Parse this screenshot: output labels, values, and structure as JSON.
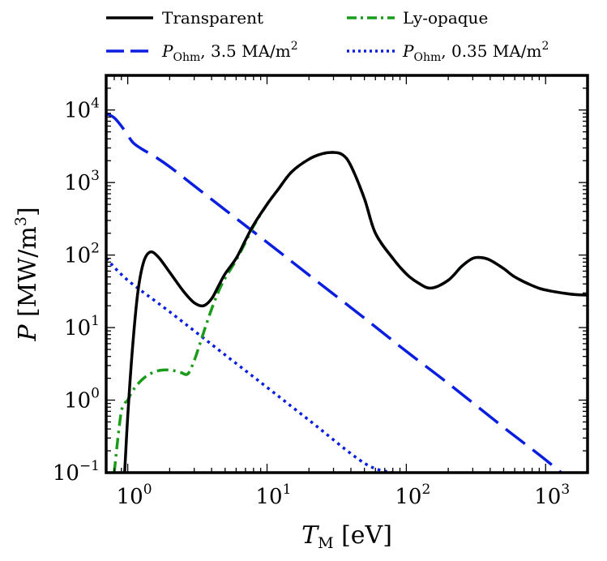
{
  "chart_data": {
    "type": "line",
    "xscale": "log",
    "yscale": "log",
    "xlim": [
      0.7,
      2000
    ],
    "ylim": [
      0.1,
      30000
    ],
    "xlabel": "T_M [eV]",
    "ylabel": "P [MW/m^3]",
    "x_ticks": [
      {
        "base": "10",
        "exp": "0",
        "value": 1
      },
      {
        "base": "10",
        "exp": "1",
        "value": 10
      },
      {
        "base": "10",
        "exp": "2",
        "value": 100
      },
      {
        "base": "10",
        "exp": "3",
        "value": 1000
      }
    ],
    "y_ticks": [
      {
        "base": "10",
        "exp": "−1",
        "value": 0.1
      },
      {
        "base": "10",
        "exp": "0",
        "value": 1
      },
      {
        "base": "10",
        "exp": "1",
        "value": 10
      },
      {
        "base": "10",
        "exp": "2",
        "value": 100
      },
      {
        "base": "10",
        "exp": "3",
        "value": 1000
      },
      {
        "base": "10",
        "exp": "4",
        "value": 10000
      }
    ],
    "grid": false,
    "legend_position": "above",
    "series": [
      {
        "name": "Transparent",
        "color": "#000000",
        "style": "solid",
        "x": [
          0.95,
          1.0,
          1.08,
          1.18,
          1.3,
          1.45,
          1.65,
          2.0,
          2.5,
          3.0,
          3.5,
          4.0,
          4.5,
          5.0,
          6.0,
          7.0,
          8.0,
          10.0,
          12.0,
          15.0,
          20.0,
          25.0,
          30.0,
          35.0,
          40.0,
          50.0,
          60.0,
          80.0,
          100.0,
          120.0,
          150.0,
          200.0,
          250.0,
          300.0,
          350.0,
          400.0,
          500.0,
          600.0,
          800.0,
          1000.0,
          1500.0,
          2000.0
        ],
        "y": [
          0.1,
          0.6,
          5.0,
          30.0,
          80.0,
          110.0,
          95.0,
          58.0,
          32.0,
          22.0,
          20.0,
          25.0,
          38.0,
          55.0,
          90.0,
          160.0,
          260.0,
          500.0,
          800.0,
          1400.0,
          2100.0,
          2500.0,
          2600.0,
          2400.0,
          1700.0,
          600.0,
          200.0,
          90.0,
          55.0,
          42.0,
          35.0,
          45.0,
          70.0,
          90.0,
          92.0,
          85.0,
          65.0,
          50.0,
          38.0,
          33.0,
          29.0,
          28.0
        ]
      },
      {
        "name": "Ly-opaque",
        "color": "#1a9c1a",
        "style": "dashdot",
        "x": [
          0.8,
          0.85,
          0.9,
          0.95,
          1.0,
          1.1,
          1.3,
          1.6,
          2.0,
          2.4,
          2.7,
          3.0,
          3.3,
          3.6,
          4.0,
          4.5,
          5.0,
          6.0,
          7.0,
          8.0,
          10.0,
          12.0,
          15.0,
          20.0,
          25.0,
          30.0,
          35.0,
          40.0,
          50.0,
          60.0,
          80.0,
          100.0,
          120.0,
          150.0,
          200.0,
          250.0,
          300.0,
          350.0,
          400.0,
          500.0,
          600.0,
          800.0,
          1000.0,
          1500.0,
          2000.0
        ],
        "y": [
          0.1,
          0.3,
          0.7,
          0.9,
          1.0,
          1.4,
          2.0,
          2.5,
          2.6,
          2.4,
          2.3,
          3.5,
          6.0,
          10.0,
          18.0,
          32.0,
          48.0,
          85.0,
          150.0,
          250.0,
          500.0,
          800.0,
          1400.0,
          2100.0,
          2500.0,
          2600.0,
          2400.0,
          1700.0,
          600.0,
          200.0,
          90.0,
          55.0,
          42.0,
          35.0,
          45.0,
          70.0,
          90.0,
          92.0,
          85.0,
          65.0,
          50.0,
          38.0,
          33.0,
          29.0,
          28.0
        ]
      },
      {
        "name": "P_Ohm, 3.5 MA/m^2",
        "color": "#0a1ee0",
        "style": "dashed",
        "x": [
          0.7,
          0.8,
          0.9,
          1.0,
          1.1,
          1.3,
          1.5,
          2.0,
          3.0,
          5.0,
          10.0,
          20.0,
          50.0,
          100.0,
          200.0,
          500.0,
          1000.0,
          2000.0
        ],
        "y": [
          9000.0,
          7800.0,
          6000.0,
          4500.0,
          3500.0,
          2800.0,
          2400.0,
          1650.0,
          900.0,
          420.0,
          150.0,
          53.0,
          13.5,
          4.7,
          1.7,
          0.42,
          0.15,
          0.05
        ]
      },
      {
        "name": "P_Ohm, 0.35 MA/m^2",
        "color": "#0a1ee0",
        "style": "dotted",
        "x": [
          0.7,
          1.0,
          2.0,
          5.0,
          10.0,
          20.0,
          50.0,
          80.0
        ],
        "y": [
          90.0,
          45.0,
          16.5,
          4.2,
          1.5,
          0.53,
          0.135,
          0.1
        ]
      }
    ],
    "legend": [
      {
        "series": 0,
        "label": "Transparent"
      },
      {
        "series": 1,
        "label": "Ly-opaque"
      },
      {
        "series": 2,
        "label_main": "P",
        "label_sub": "Ohm",
        "label_rest": ", 3.5 MA/m",
        "label_sup": "2"
      },
      {
        "series": 3,
        "label_main": "P",
        "label_sub": "Ohm",
        "label_rest": ", 0.35 MA/m",
        "label_sup": "2"
      }
    ],
    "axis_text": {
      "x_main": "T",
      "x_sub": "M",
      "x_unit": " [eV]",
      "y_main": "P",
      "y_unit": " [MW/m",
      "y_sup": "3",
      "y_close": "]"
    }
  }
}
